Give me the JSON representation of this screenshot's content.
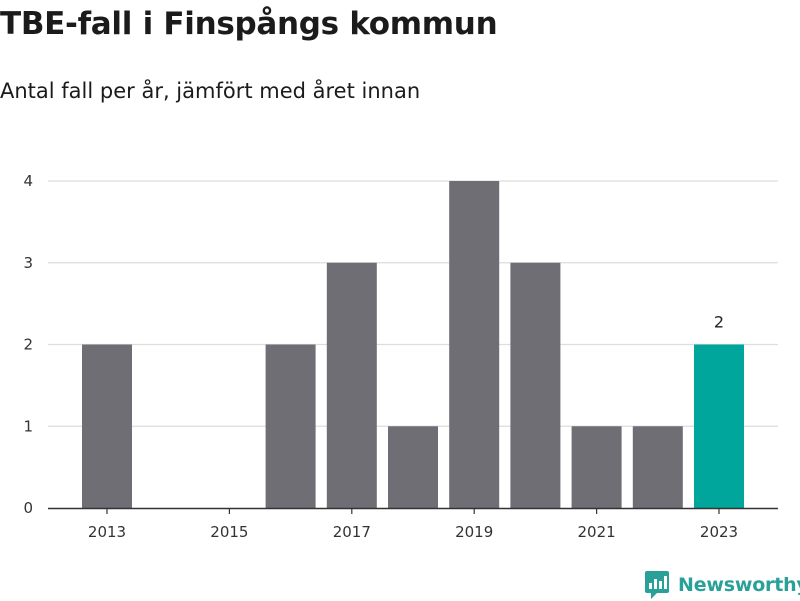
{
  "title": "TBE-fall i Finspångs kommun",
  "subtitle": "Antal fall per år, jämfört med året innan",
  "brand": {
    "name": "Newsworthy",
    "icon": "newsworthy-logo-icon",
    "color": "#2aa198"
  },
  "colors": {
    "bar": "#6f6e74",
    "highlight": "#00a59b",
    "grid": "#dddddd",
    "axis": "#333333"
  },
  "chart_data": {
    "type": "bar",
    "title": "TBE-fall i Finspångs kommun",
    "subtitle": "Antal fall per år, jämfört med året innan",
    "xlabel": "",
    "ylabel": "",
    "categories": [
      2013,
      2014,
      2015,
      2016,
      2017,
      2018,
      2019,
      2020,
      2021,
      2022,
      2023
    ],
    "values": [
      2,
      0,
      0,
      2,
      3,
      1,
      4,
      3,
      1,
      1,
      2
    ],
    "highlight_index": 10,
    "x_tick_labels": [
      "2013",
      "2015",
      "2017",
      "2019",
      "2021",
      "2023"
    ],
    "y_ticks": [
      0,
      1,
      2,
      3,
      4
    ],
    "ylim": [
      0,
      4
    ],
    "grid": true,
    "data_labels": [
      {
        "index": 10,
        "text": "2"
      }
    ]
  }
}
